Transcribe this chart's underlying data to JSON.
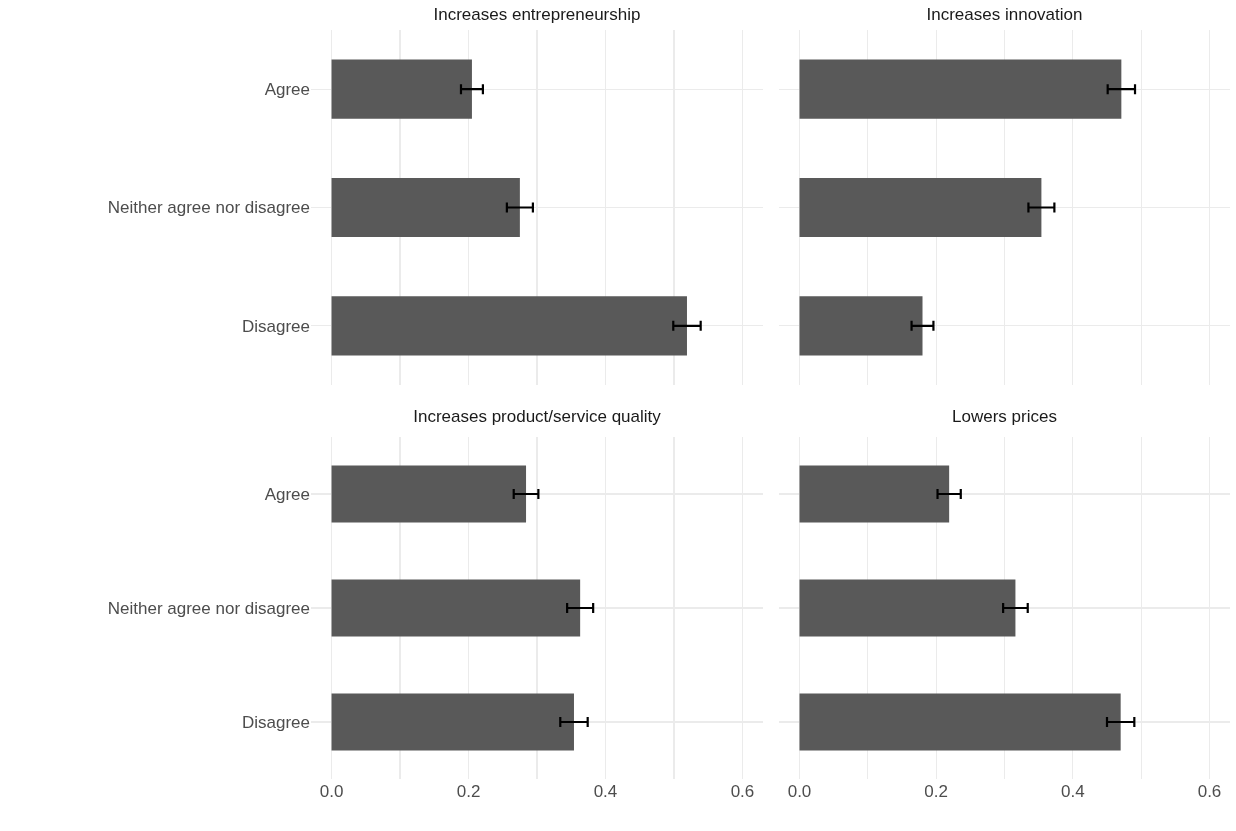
{
  "chart_data": [
    {
      "type": "bar",
      "orientation": "horizontal",
      "title": "Increases entrepreneurship",
      "categories": [
        "Agree",
        "Neither agree nor disagree",
        "Disagree"
      ],
      "values": [
        0.205,
        0.275,
        0.519
      ],
      "errors": [
        0.016,
        0.019,
        0.02
      ],
      "color": "#595959",
      "xlim": [
        -0.03,
        0.63
      ],
      "xticks": [
        0,
        {
          "value": 0.1,
          "label": null
        },
        0.2,
        {
          "value": 0.3,
          "label": null
        },
        0.4,
        {
          "value": 0.5,
          "label": null
        },
        0.6
      ],
      "grid": true,
      "tick_labels": "y"
    },
    {
      "type": "bar",
      "orientation": "horizontal",
      "title": "Increases innovation",
      "categories": [
        "Agree",
        "Neither agree nor disagree",
        "Disagree"
      ],
      "values": [
        0.471,
        0.354,
        0.18
      ],
      "errors": [
        0.02,
        0.019,
        0.016
      ],
      "color": "#595959",
      "xlim": [
        -0.03,
        0.63
      ],
      "xticks": [
        0,
        {
          "value": 0.1,
          "label": null
        },
        0.2,
        {
          "value": 0.3,
          "label": null
        },
        0.4,
        {
          "value": 0.5,
          "label": null
        },
        0.6
      ],
      "grid": true,
      "tick_labels": false
    },
    {
      "type": "bar",
      "orientation": "horizontal",
      "title": "Increases product/service quality",
      "categories": [
        "Agree",
        "Neither agree nor disagree",
        "Disagree"
      ],
      "values": [
        0.284,
        0.363,
        0.354
      ],
      "errors": [
        0.018,
        0.019,
        0.02
      ],
      "color": "#595959",
      "xlim": [
        -0.03,
        0.63
      ],
      "xticks": [
        {
          "value": 0,
          "label": "0.0"
        },
        {
          "value": 0.1,
          "label": null
        },
        0.2,
        {
          "value": 0.3,
          "label": null
        },
        0.4,
        {
          "value": 0.5,
          "label": null
        },
        0.6
      ],
      "grid": true
    },
    {
      "type": "bar",
      "orientation": "horizontal",
      "title": "Lowers prices",
      "categories": [
        "Agree",
        "Neither agree nor disagree",
        "Disagree"
      ],
      "values": [
        0.219,
        0.316,
        0.47
      ],
      "errors": [
        0.017,
        0.018,
        0.02
      ],
      "color": "#595959",
      "xlim": [
        -0.03,
        0.63
      ],
      "xticks": [
        {
          "value": 0,
          "label": "0.0"
        },
        {
          "value": 0.1,
          "label": null
        },
        0.2,
        {
          "value": 0.3,
          "label": null
        },
        0.4,
        {
          "value": 0.5,
          "label": null
        },
        0.6
      ],
      "grid": true,
      "tick_labels": "x"
    }
  ]
}
